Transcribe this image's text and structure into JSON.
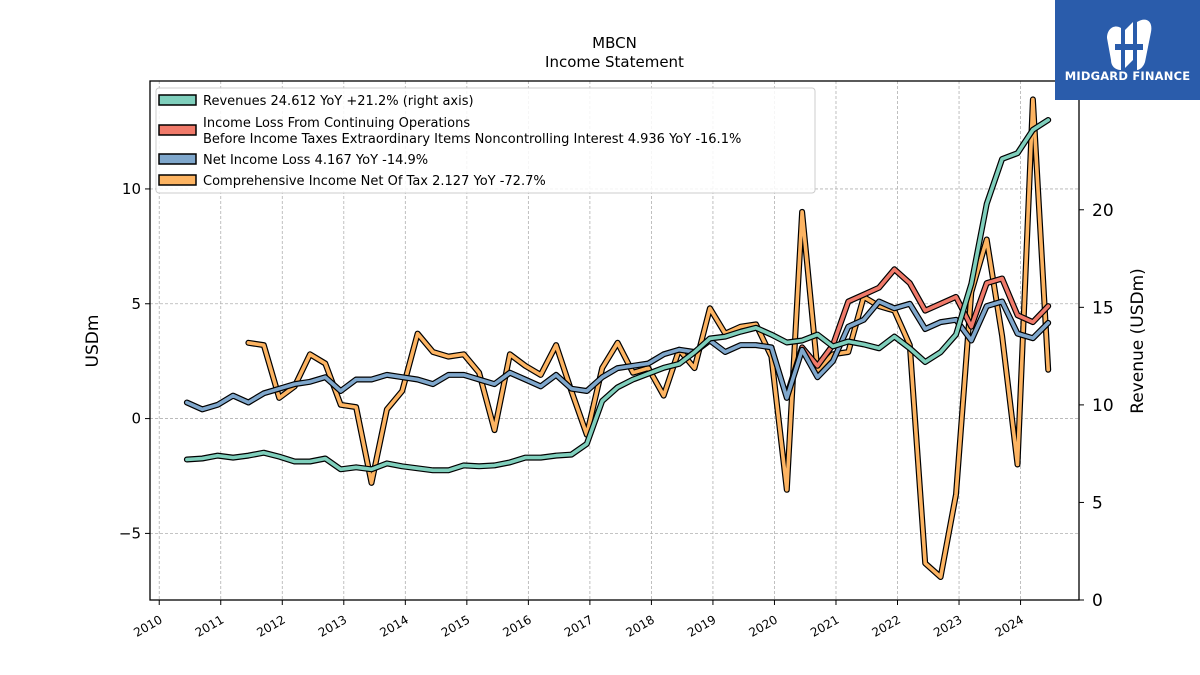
{
  "brand": {
    "name": "MIDGARD FINANCE",
    "background": "#2a5cab"
  },
  "chart_data": {
    "type": "line",
    "title": "MBCN",
    "subtitle": "Income Statement",
    "ylabel": "USDm",
    "ylabel_right": "Revenue (USDm)",
    "ylim": [
      -7.9,
      14.7
    ],
    "ylim_right": [
      0,
      26.6
    ],
    "yticks": [
      -5,
      0,
      5,
      10
    ],
    "yticks_labels": [
      "−5",
      "0",
      "5",
      "10"
    ],
    "yticks_right": [
      0,
      5,
      10,
      15,
      20
    ],
    "xlim": [
      2009.85,
      2024.95
    ],
    "xticks": [
      2010,
      2011,
      2012,
      2013,
      2014,
      2015,
      2016,
      2017,
      2018,
      2019,
      2020,
      2021,
      2022,
      2023,
      2024
    ],
    "grid": true,
    "legend_position": "top-left",
    "series": [
      {
        "name": "Revenues  24.612 YoY +21.2% (right axis)",
        "legend_lines": [
          "Revenues  24.612 YoY +21.2% (right axis)"
        ],
        "color": "#7fcfbc",
        "axis": "right",
        "data": [
          [
            2010.45,
            7.2
          ],
          [
            2010.7,
            7.25
          ],
          [
            2010.95,
            7.4
          ],
          [
            2011.2,
            7.3
          ],
          [
            2011.45,
            7.4
          ],
          [
            2011.7,
            7.55
          ],
          [
            2011.95,
            7.35
          ],
          [
            2012.2,
            7.1
          ],
          [
            2012.45,
            7.1
          ],
          [
            2012.7,
            7.25
          ],
          [
            2012.95,
            6.7
          ],
          [
            2013.2,
            6.8
          ],
          [
            2013.45,
            6.7
          ],
          [
            2013.7,
            7.0
          ],
          [
            2013.95,
            6.85
          ],
          [
            2014.2,
            6.75
          ],
          [
            2014.45,
            6.65
          ],
          [
            2014.7,
            6.65
          ],
          [
            2014.95,
            6.9
          ],
          [
            2015.2,
            6.85
          ],
          [
            2015.45,
            6.9
          ],
          [
            2015.7,
            7.05
          ],
          [
            2015.95,
            7.3
          ],
          [
            2016.2,
            7.3
          ],
          [
            2016.45,
            7.4
          ],
          [
            2016.7,
            7.45
          ],
          [
            2016.95,
            8.0
          ],
          [
            2017.2,
            10.2
          ],
          [
            2017.45,
            10.9
          ],
          [
            2017.7,
            11.3
          ],
          [
            2017.95,
            11.6
          ],
          [
            2018.2,
            11.9
          ],
          [
            2018.45,
            12.1
          ],
          [
            2018.7,
            12.7
          ],
          [
            2018.95,
            13.4
          ],
          [
            2019.2,
            13.5
          ],
          [
            2019.45,
            13.75
          ],
          [
            2019.7,
            13.95
          ],
          [
            2019.95,
            13.6
          ],
          [
            2020.2,
            13.2
          ],
          [
            2020.45,
            13.3
          ],
          [
            2020.7,
            13.6
          ],
          [
            2020.95,
            13.0
          ],
          [
            2021.2,
            13.25
          ],
          [
            2021.45,
            13.1
          ],
          [
            2021.7,
            12.9
          ],
          [
            2021.95,
            13.5
          ],
          [
            2022.2,
            12.9
          ],
          [
            2022.45,
            12.2
          ],
          [
            2022.7,
            12.7
          ],
          [
            2022.95,
            13.6
          ],
          [
            2023.2,
            16.2
          ],
          [
            2023.45,
            20.3
          ],
          [
            2023.7,
            22.6
          ],
          [
            2023.95,
            22.9
          ],
          [
            2024.2,
            24.1
          ],
          [
            2024.45,
            24.6
          ]
        ]
      },
      {
        "name": "Income Loss From Continuing Operations Before Income Taxes Extraordinary Items Noncontrolling Interest  4.936 YoY -16.1%",
        "legend_lines": [
          "Income Loss From Continuing Operations",
          "Before Income Taxes Extraordinary Items Noncontrolling Interest  4.936 YoY -16.1%"
        ],
        "color": "#f07a6a",
        "axis": "left",
        "data": [
          [
            2020.2,
            1.0
          ],
          [
            2020.45,
            3.1
          ],
          [
            2020.7,
            2.3
          ],
          [
            2020.95,
            3.2
          ],
          [
            2021.2,
            5.1
          ],
          [
            2021.45,
            5.4
          ],
          [
            2021.7,
            5.7
          ],
          [
            2021.95,
            6.5
          ],
          [
            2022.2,
            5.9
          ],
          [
            2022.45,
            4.7
          ],
          [
            2022.7,
            5.0
          ],
          [
            2022.95,
            5.3
          ],
          [
            2023.2,
            4.0
          ],
          [
            2023.45,
            5.9
          ],
          [
            2023.7,
            6.1
          ],
          [
            2023.95,
            4.5
          ],
          [
            2024.2,
            4.2
          ],
          [
            2024.45,
            4.9
          ]
        ]
      },
      {
        "name": "Net Income Loss  4.167 YoY -14.9%",
        "legend_lines": [
          "Net Income Loss  4.167 YoY -14.9%"
        ],
        "color": "#7fa7cc",
        "axis": "left",
        "data": [
          [
            2010.45,
            0.7
          ],
          [
            2010.7,
            0.4
          ],
          [
            2010.95,
            0.6
          ],
          [
            2011.2,
            1.0
          ],
          [
            2011.45,
            0.7
          ],
          [
            2011.7,
            1.1
          ],
          [
            2011.95,
            1.3
          ],
          [
            2012.2,
            1.5
          ],
          [
            2012.45,
            1.6
          ],
          [
            2012.7,
            1.8
          ],
          [
            2012.95,
            1.2
          ],
          [
            2013.2,
            1.7
          ],
          [
            2013.45,
            1.7
          ],
          [
            2013.7,
            1.9
          ],
          [
            2013.95,
            1.8
          ],
          [
            2014.2,
            1.7
          ],
          [
            2014.45,
            1.5
          ],
          [
            2014.7,
            1.9
          ],
          [
            2014.95,
            1.9
          ],
          [
            2015.2,
            1.7
          ],
          [
            2015.45,
            1.5
          ],
          [
            2015.7,
            2.0
          ],
          [
            2015.95,
            1.7
          ],
          [
            2016.2,
            1.4
          ],
          [
            2016.45,
            1.9
          ],
          [
            2016.7,
            1.3
          ],
          [
            2016.95,
            1.2
          ],
          [
            2017.2,
            1.8
          ],
          [
            2017.45,
            2.2
          ],
          [
            2017.7,
            2.3
          ],
          [
            2017.95,
            2.4
          ],
          [
            2018.2,
            2.8
          ],
          [
            2018.45,
            3.0
          ],
          [
            2018.7,
            2.9
          ],
          [
            2018.95,
            3.4
          ],
          [
            2019.2,
            2.9
          ],
          [
            2019.45,
            3.2
          ],
          [
            2019.7,
            3.2
          ],
          [
            2019.95,
            3.1
          ],
          [
            2020.2,
            0.9
          ],
          [
            2020.45,
            3.0
          ],
          [
            2020.7,
            1.8
          ],
          [
            2020.95,
            2.5
          ],
          [
            2021.2,
            4.0
          ],
          [
            2021.45,
            4.3
          ],
          [
            2021.7,
            5.1
          ],
          [
            2021.95,
            4.8
          ],
          [
            2022.2,
            5.0
          ],
          [
            2022.45,
            3.9
          ],
          [
            2022.7,
            4.2
          ],
          [
            2022.95,
            4.3
          ],
          [
            2023.2,
            3.4
          ],
          [
            2023.45,
            4.9
          ],
          [
            2023.7,
            5.1
          ],
          [
            2023.95,
            3.7
          ],
          [
            2024.2,
            3.5
          ],
          [
            2024.45,
            4.167
          ]
        ]
      },
      {
        "name": "Comprehensive Income Net Of Tax  2.127 YoY -72.7%",
        "legend_lines": [
          "Comprehensive Income Net Of Tax  2.127 YoY -72.7%"
        ],
        "color": "#fdb462",
        "axis": "left",
        "data": [
          [
            2011.45,
            3.3
          ],
          [
            2011.7,
            3.2
          ],
          [
            2011.95,
            0.9
          ],
          [
            2012.2,
            1.4
          ],
          [
            2012.45,
            2.8
          ],
          [
            2012.7,
            2.4
          ],
          [
            2012.95,
            0.6
          ],
          [
            2013.2,
            0.5
          ],
          [
            2013.45,
            -2.8
          ],
          [
            2013.7,
            0.4
          ],
          [
            2013.95,
            1.2
          ],
          [
            2014.2,
            3.7
          ],
          [
            2014.45,
            2.9
          ],
          [
            2014.7,
            2.7
          ],
          [
            2014.95,
            2.8
          ],
          [
            2015.2,
            2.0
          ],
          [
            2015.45,
            -0.5
          ],
          [
            2015.7,
            2.8
          ],
          [
            2015.95,
            2.3
          ],
          [
            2016.2,
            1.9
          ],
          [
            2016.45,
            3.2
          ],
          [
            2016.7,
            1.2
          ],
          [
            2016.95,
            -0.7
          ],
          [
            2017.2,
            2.2
          ],
          [
            2017.45,
            3.3
          ],
          [
            2017.7,
            2.0
          ],
          [
            2017.95,
            2.2
          ],
          [
            2018.2,
            1.0
          ],
          [
            2018.45,
            3.0
          ],
          [
            2018.7,
            2.2
          ],
          [
            2018.95,
            4.8
          ],
          [
            2019.2,
            3.7
          ],
          [
            2019.45,
            4.0
          ],
          [
            2019.7,
            4.1
          ],
          [
            2019.95,
            2.7
          ],
          [
            2020.2,
            -3.1
          ],
          [
            2020.45,
            9.0
          ],
          [
            2020.7,
            2.1
          ],
          [
            2020.95,
            2.8
          ],
          [
            2021.2,
            2.9
          ],
          [
            2021.45,
            5.3
          ],
          [
            2021.7,
            4.9
          ],
          [
            2021.95,
            4.7
          ],
          [
            2022.2,
            3.2
          ],
          [
            2022.45,
            -6.3
          ],
          [
            2022.7,
            -6.9
          ],
          [
            2022.95,
            -3.3
          ],
          [
            2023.2,
            5.5
          ],
          [
            2023.45,
            7.8
          ],
          [
            2023.7,
            3.6
          ],
          [
            2023.95,
            -2.0
          ],
          [
            2024.2,
            13.9
          ],
          [
            2024.45,
            2.127
          ]
        ]
      }
    ]
  }
}
